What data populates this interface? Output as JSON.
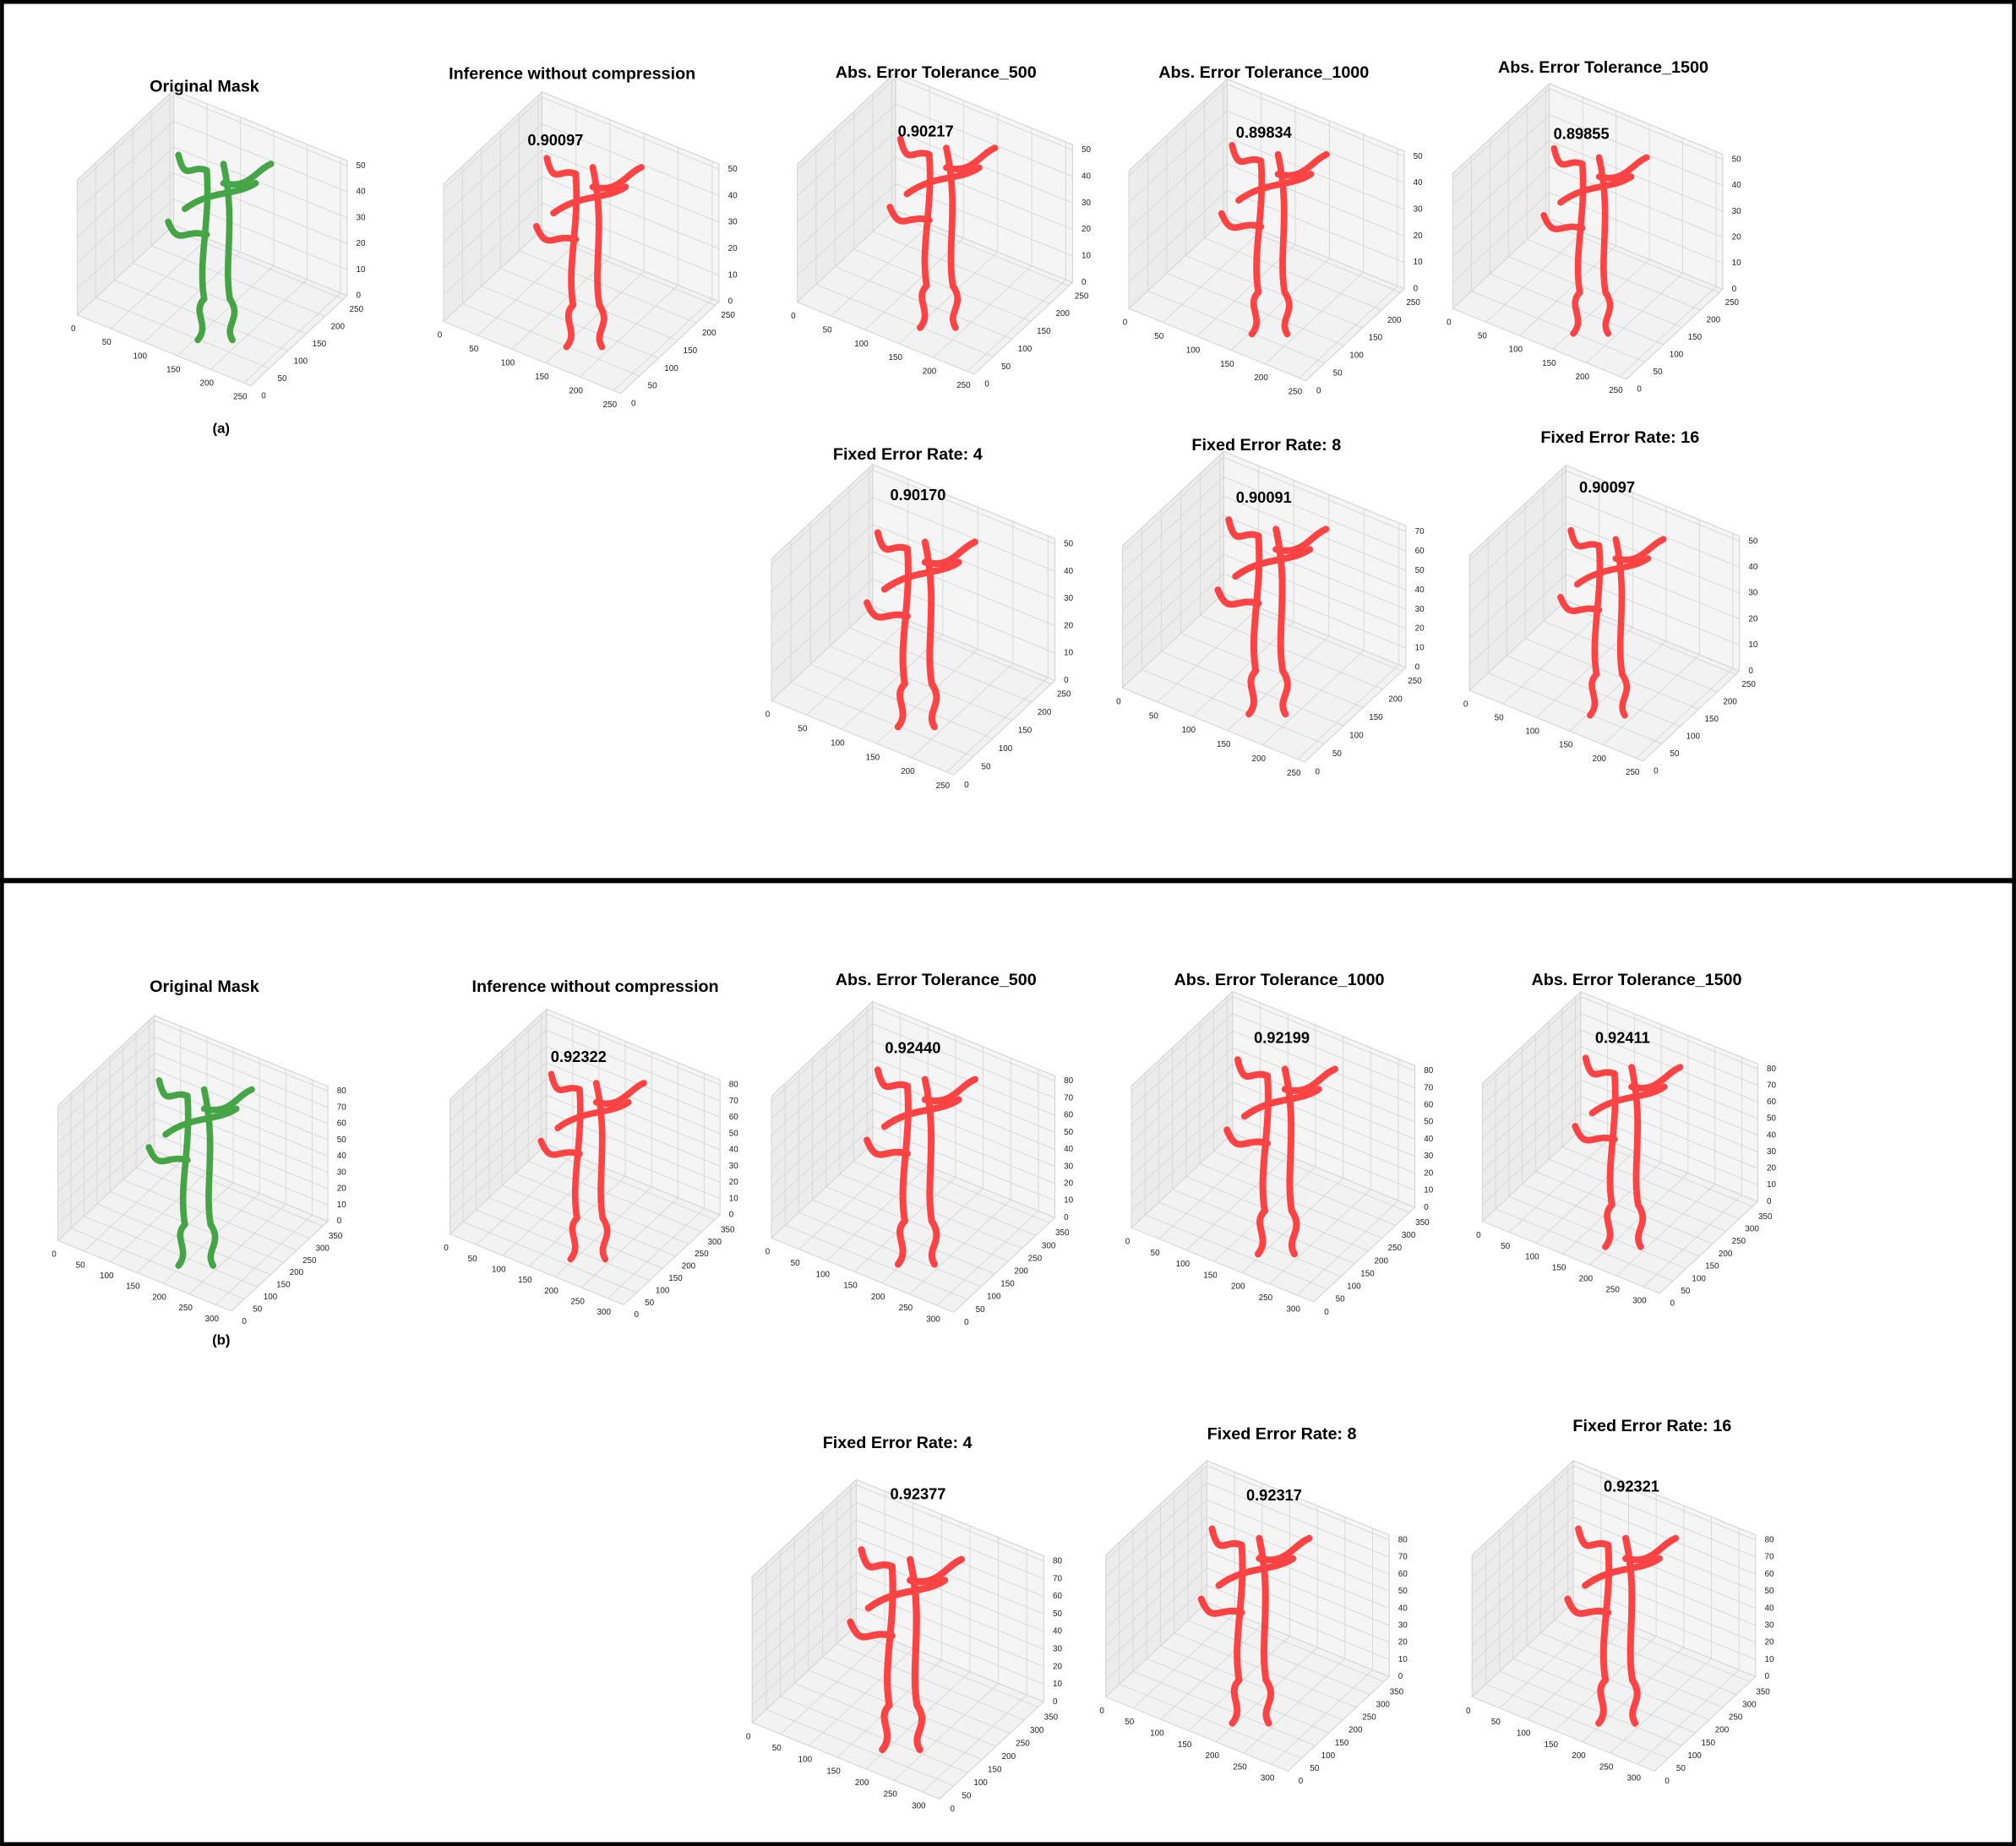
{
  "panels": [
    {
      "label": "(a)",
      "plots": [
        {
          "title": "Original Mask",
          "color": "#2e9a2e",
          "xlim": [
            0,
            260
          ],
          "xticks": [
            0,
            50,
            100,
            150,
            200,
            250
          ],
          "ylim": [
            0,
            260
          ],
          "yticks": [
            0,
            50,
            100,
            150,
            200,
            250
          ],
          "zlim": [
            0,
            52
          ],
          "zticks": [
            0,
            10,
            20,
            30,
            40,
            50
          ]
        },
        {
          "title": "Inference without compression",
          "score": "0.90097",
          "color": "#ff2b2b",
          "xlim": [
            0,
            260
          ],
          "xticks": [
            0,
            50,
            100,
            150,
            200,
            250
          ],
          "ylim": [
            0,
            260
          ],
          "yticks": [
            0,
            50,
            100,
            150,
            200,
            250
          ],
          "zlim": [
            0,
            52
          ],
          "zticks": [
            0,
            10,
            20,
            30,
            40,
            50
          ]
        },
        {
          "title": "Abs. Error Tolerance_500",
          "score": "0.90217",
          "color": "#ff2b2b",
          "xlim": [
            0,
            260
          ],
          "xticks": [
            0,
            50,
            100,
            150,
            200,
            250
          ],
          "ylim": [
            0,
            260
          ],
          "yticks": [
            0,
            50,
            100,
            150,
            200,
            250
          ],
          "zlim": [
            0,
            52
          ],
          "zticks": [
            0,
            10,
            20,
            30,
            40,
            50
          ]
        },
        {
          "title": "Abs. Error Tolerance_1000",
          "score": "0.89834",
          "color": "#ff2b2b",
          "xlim": [
            0,
            260
          ],
          "xticks": [
            0,
            50,
            100,
            150,
            200,
            250
          ],
          "ylim": [
            0,
            260
          ],
          "yticks": [
            0,
            50,
            100,
            150,
            200,
            250
          ],
          "zlim": [
            0,
            52
          ],
          "zticks": [
            0,
            10,
            20,
            30,
            40,
            50
          ]
        },
        {
          "title": "Abs. Error Tolerance_1500",
          "score": "0.89855",
          "color": "#ff2b2b",
          "xlim": [
            0,
            260
          ],
          "xticks": [
            0,
            50,
            100,
            150,
            200,
            250
          ],
          "ylim": [
            0,
            260
          ],
          "yticks": [
            0,
            50,
            100,
            150,
            200,
            250
          ],
          "zlim": [
            0,
            52
          ],
          "zticks": [
            0,
            10,
            20,
            30,
            40,
            50
          ]
        },
        {
          "title": "Fixed Error Rate: 4",
          "score": "0.90170",
          "color": "#ff2b2b",
          "xlim": [
            0,
            260
          ],
          "xticks": [
            0,
            50,
            100,
            150,
            200,
            250
          ],
          "ylim": [
            0,
            260
          ],
          "yticks": [
            0,
            50,
            100,
            150,
            200,
            250
          ],
          "zlim": [
            0,
            52
          ],
          "zticks": [
            0,
            10,
            20,
            30,
            40,
            50
          ]
        },
        {
          "title": "Fixed Error Rate: 8",
          "score": "0.90091",
          "color": "#ff2b2b",
          "xlim": [
            0,
            260
          ],
          "xticks": [
            0,
            50,
            100,
            150,
            200,
            250
          ],
          "ylim": [
            0,
            260
          ],
          "yticks": [
            0,
            50,
            100,
            150,
            200,
            250
          ],
          "zlim": [
            0,
            73
          ],
          "zticks": [
            0,
            10,
            20,
            30,
            40,
            50,
            60,
            70
          ]
        },
        {
          "title": "Fixed Error Rate: 16",
          "score": "0.90097",
          "color": "#ff2b2b",
          "xlim": [
            0,
            260
          ],
          "xticks": [
            0,
            50,
            100,
            150,
            200,
            250
          ],
          "ylim": [
            0,
            260
          ],
          "yticks": [
            0,
            50,
            100,
            150,
            200,
            250
          ],
          "zlim": [
            0,
            52
          ],
          "zticks": [
            0,
            10,
            20,
            30,
            40,
            50
          ]
        }
      ]
    },
    {
      "label": "(b)",
      "plots": [
        {
          "title": "Original Mask",
          "color": "#2e9a2e",
          "xlim": [
            0,
            330
          ],
          "xticks": [
            0,
            50,
            100,
            150,
            200,
            250,
            300
          ],
          "ylim": [
            0,
            370
          ],
          "yticks": [
            0,
            50,
            100,
            150,
            200,
            250,
            300,
            350
          ],
          "zlim": [
            0,
            83
          ],
          "zticks": [
            0,
            10,
            20,
            30,
            40,
            50,
            60,
            70,
            80
          ]
        },
        {
          "title": "Inference without compression",
          "score": "0.92322",
          "color": "#ff2b2b",
          "xlim": [
            0,
            330
          ],
          "xticks": [
            0,
            50,
            100,
            150,
            200,
            250,
            300
          ],
          "ylim": [
            0,
            370
          ],
          "yticks": [
            0,
            50,
            100,
            150,
            200,
            250,
            300,
            350
          ],
          "zlim": [
            0,
            83
          ],
          "zticks": [
            0,
            10,
            20,
            30,
            40,
            50,
            60,
            70,
            80
          ]
        },
        {
          "title": "Abs. Error Tolerance_500",
          "score": "0.92440",
          "color": "#ff2b2b",
          "xlim": [
            0,
            330
          ],
          "xticks": [
            0,
            50,
            100,
            150,
            200,
            250,
            300
          ],
          "ylim": [
            0,
            370
          ],
          "yticks": [
            0,
            50,
            100,
            150,
            200,
            250,
            300,
            350
          ],
          "zlim": [
            0,
            83
          ],
          "zticks": [
            0,
            10,
            20,
            30,
            40,
            50,
            60,
            70,
            80
          ]
        },
        {
          "title": "Abs. Error Tolerance_1000",
          "score": "0.92199",
          "color": "#ff2b2b",
          "xlim": [
            0,
            330
          ],
          "xticks": [
            0,
            50,
            100,
            150,
            200,
            250,
            300
          ],
          "ylim": [
            0,
            370
          ],
          "yticks": [
            0,
            50,
            100,
            150,
            200,
            250,
            300,
            350
          ],
          "zlim": [
            0,
            83
          ],
          "zticks": [
            0,
            10,
            20,
            30,
            40,
            50,
            60,
            70,
            80
          ]
        },
        {
          "title": "Abs. Error Tolerance_1500",
          "score": "0.92411",
          "color": "#ff2b2b",
          "xlim": [
            0,
            330
          ],
          "xticks": [
            0,
            50,
            100,
            150,
            200,
            250,
            300
          ],
          "ylim": [
            0,
            370
          ],
          "yticks": [
            0,
            50,
            100,
            150,
            200,
            250,
            300,
            350
          ],
          "zlim": [
            0,
            83
          ],
          "zticks": [
            0,
            10,
            20,
            30,
            40,
            50,
            60,
            70,
            80
          ]
        },
        {
          "title": "Fixed Error Rate: 4",
          "score": "0.92377",
          "color": "#ff2b2b",
          "xlim": [
            0,
            330
          ],
          "xticks": [
            0,
            50,
            100,
            150,
            200,
            250,
            300
          ],
          "ylim": [
            0,
            370
          ],
          "yticks": [
            0,
            50,
            100,
            150,
            200,
            250,
            300,
            350
          ],
          "zlim": [
            0,
            83
          ],
          "zticks": [
            0,
            10,
            20,
            30,
            40,
            50,
            60,
            70,
            80
          ]
        },
        {
          "title": "Fixed Error Rate: 8",
          "score": "0.92317",
          "color": "#ff2b2b",
          "xlim": [
            0,
            330
          ],
          "xticks": [
            0,
            50,
            100,
            150,
            200,
            250,
            300
          ],
          "ylim": [
            0,
            370
          ],
          "yticks": [
            0,
            50,
            100,
            150,
            200,
            250,
            300,
            350
          ],
          "zlim": [
            0,
            83
          ],
          "zticks": [
            0,
            10,
            20,
            30,
            40,
            50,
            60,
            70,
            80
          ]
        },
        {
          "title": "Fixed Error Rate: 16",
          "score": "0.92321",
          "color": "#ff2b2b",
          "xlim": [
            0,
            330
          ],
          "xticks": [
            0,
            50,
            100,
            150,
            200,
            250,
            300
          ],
          "ylim": [
            0,
            370
          ],
          "yticks": [
            0,
            50,
            100,
            150,
            200,
            250,
            300,
            350
          ],
          "zlim": [
            0,
            83
          ],
          "zticks": [
            0,
            10,
            20,
            30,
            40,
            50,
            60,
            70,
            80
          ]
        }
      ]
    }
  ]
}
